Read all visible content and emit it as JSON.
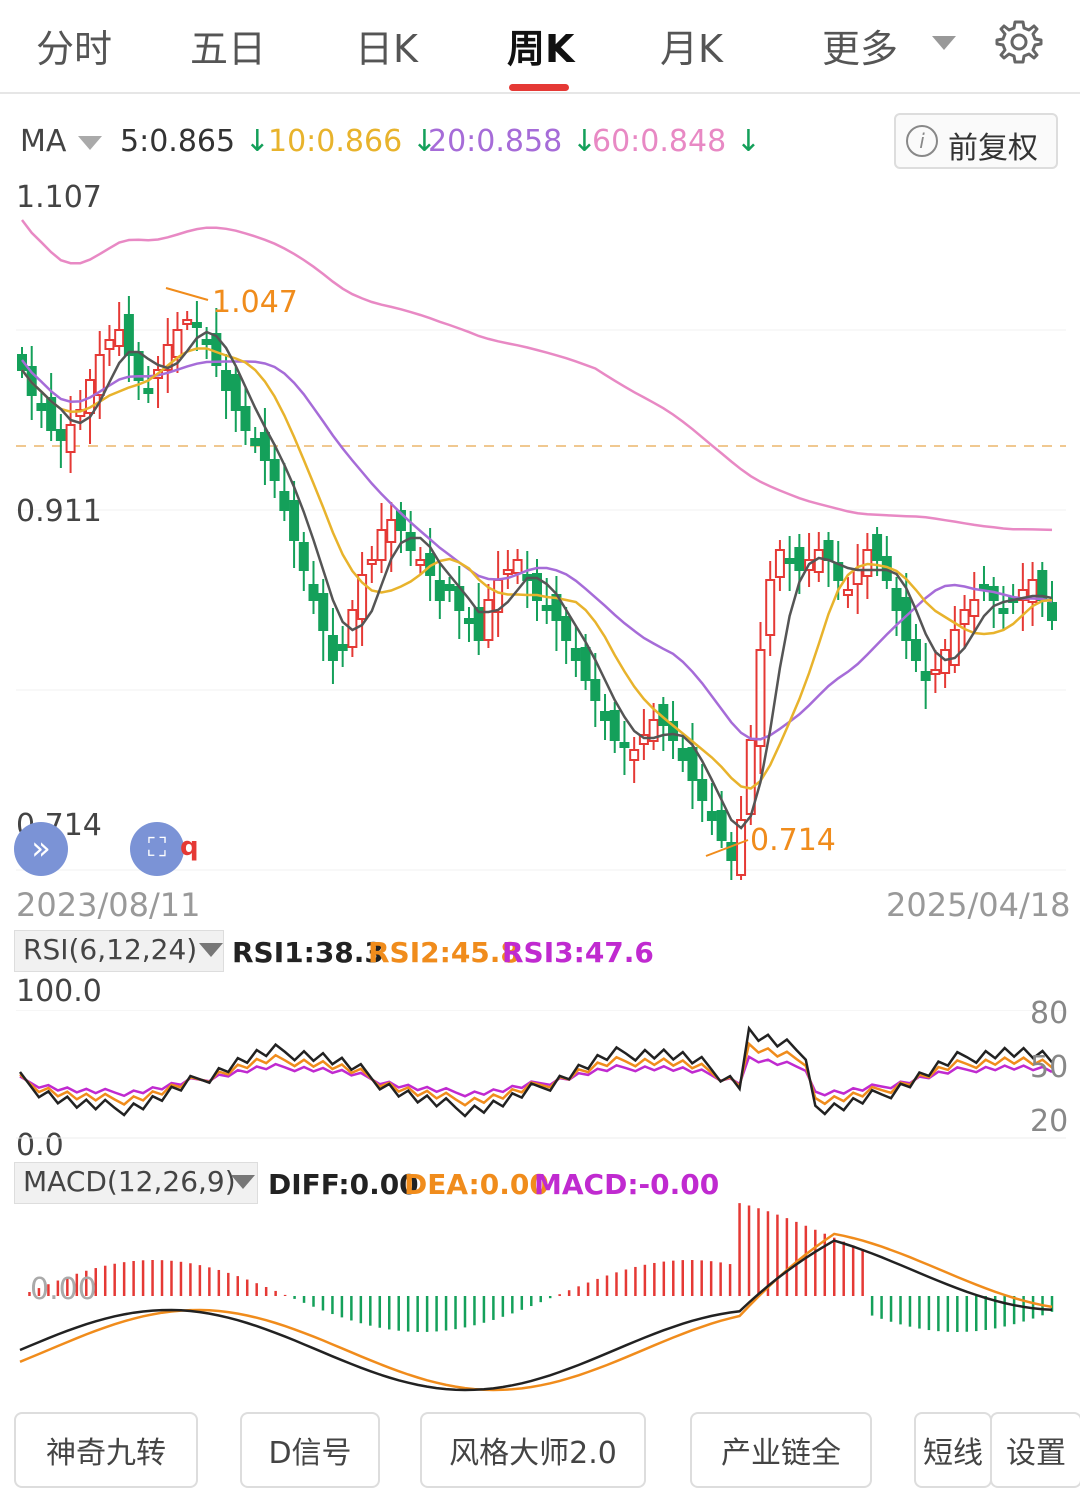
{
  "tabs": [
    "分时",
    "五日",
    "日K",
    "周K",
    "月K",
    "更多"
  ],
  "active_tab": "周K",
  "ma": {
    "label": "MA",
    "items": [
      {
        "text": "5:0.865",
        "color": "#333333"
      },
      {
        "text": "10:0.866",
        "color": "#e8b32c"
      },
      {
        "text": "20:0.858",
        "color": "#a66cd8"
      },
      {
        "text": "60:0.848",
        "color": "#e889c4"
      }
    ],
    "arrow": "↓",
    "adjust_button": "前复权"
  },
  "price_axis": {
    "top": "1.107",
    "mid": "0.911",
    "low": "0.714"
  },
  "dates": {
    "start": "2023/08/11",
    "end": "2025/04/18"
  },
  "annotations": {
    "high": "1.047",
    "low": "0.714"
  },
  "round_buttons": {
    "expand": "»",
    "fullscreen_suffix": "q"
  },
  "rsi": {
    "label": "RSI(6,12,24)",
    "values": [
      {
        "text": "RSI1:38.3",
        "color": "#222222"
      },
      {
        "text": "RSI2:45.8",
        "color": "#f08c1c"
      },
      {
        "text": "RSI3:47.6",
        "color": "#c02ad0"
      }
    ],
    "scale_top": "100.0",
    "scale_bottom": "0.0",
    "right_ticks": [
      "80",
      "50",
      "20"
    ]
  },
  "macd": {
    "label": "MACD(12,26,9)",
    "values": [
      {
        "text": "DIFF:0.00",
        "color": "#222222"
      },
      {
        "text": "DEA:0.00",
        "color": "#f08c1c"
      },
      {
        "text": "MACD:-0.00",
        "color": "#c02ad0"
      }
    ],
    "zero_label": "0.00"
  },
  "bottom_buttons": [
    "神奇九转",
    "D信号",
    "风格大师2.0",
    "产业链全",
    "短线",
    "设置"
  ],
  "colors": {
    "up": "#e53935",
    "down": "#14a05a",
    "accent": "#e53935"
  },
  "icons": {
    "settings": "gear-icon",
    "dropdown": "chevron-down-icon",
    "info": "info-icon"
  }
}
